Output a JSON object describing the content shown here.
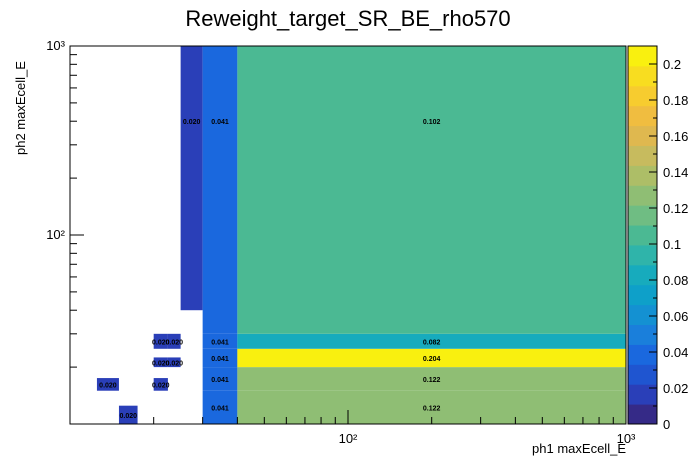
{
  "chart_data": {
    "type": "heatmap",
    "title": "Reweight_target_SR_BE_rho570",
    "xlabel": "ph1 maxEcell_E",
    "ylabel": "ph2 maxEcell_E",
    "x_scale": "log",
    "y_scale": "log",
    "xlim": [
      10,
      1000
    ],
    "ylim": [
      10,
      1000
    ],
    "x_ticks": [
      {
        "value": 100,
        "label": "10²"
      },
      {
        "value": 1000,
        "label": "10³"
      }
    ],
    "y_ticks": [
      {
        "value": 100,
        "label": "10²"
      },
      {
        "value": 1000,
        "label": "10³"
      }
    ],
    "colorbar": {
      "range": [
        0,
        0.21
      ],
      "tick_values": [
        0,
        0.02,
        0.04,
        0.06,
        0.08,
        0.1,
        0.12,
        0.14,
        0.16,
        0.18,
        0.2
      ],
      "tick_labels": [
        "0",
        "0.02",
        "0.04",
        "0.06",
        "0.08",
        "0.1",
        "0.12",
        "0.14",
        "0.16",
        "0.18",
        "0.2"
      ]
    },
    "x_edges": [
      10,
      12.5,
      15,
      17.5,
      20,
      22.5,
      25,
      30,
      40,
      1000
    ],
    "y_edges": [
      10,
      12.5,
      15,
      17.5,
      20,
      22.5,
      25,
      30,
      40,
      1000
    ],
    "cells": [
      {
        "x": [
          15,
          17.5
        ],
        "y": [
          10,
          12.5
        ],
        "value": 0.02,
        "label": "0.020"
      },
      {
        "x": [
          12.5,
          15
        ],
        "y": [
          15,
          17.5
        ],
        "value": 0.02,
        "label": "0.020"
      },
      {
        "x": [
          20,
          22.5
        ],
        "y": [
          15,
          17.5
        ],
        "value": 0.02,
        "label": "0.020"
      },
      {
        "x": [
          20,
          22.5
        ],
        "y": [
          20,
          22.5
        ],
        "value": 0.02,
        "label": "0.020"
      },
      {
        "x": [
          22.5,
          25
        ],
        "y": [
          20,
          22.5
        ],
        "value": 0.02,
        "label": "0.020"
      },
      {
        "x": [
          20,
          22.5
        ],
        "y": [
          25,
          30
        ],
        "value": 0.02,
        "label": "0.020"
      },
      {
        "x": [
          22.5,
          25
        ],
        "y": [
          25,
          30
        ],
        "value": 0.02,
        "label": "0.020"
      },
      {
        "x": [
          25,
          30
        ],
        "y": [
          40,
          1000
        ],
        "value": 0.02,
        "label": "0.020"
      },
      {
        "x": [
          30,
          40
        ],
        "y": [
          10,
          15
        ],
        "value": 0.041,
        "label": "0.041"
      },
      {
        "x": [
          30,
          40
        ],
        "y": [
          15,
          20
        ],
        "value": 0.041,
        "label": "0.041"
      },
      {
        "x": [
          30,
          40
        ],
        "y": [
          20,
          25
        ],
        "value": 0.041,
        "label": "0.041"
      },
      {
        "x": [
          30,
          40
        ],
        "y": [
          25,
          30
        ],
        "value": 0.041,
        "label": "0.041"
      },
      {
        "x": [
          30,
          40
        ],
        "y": [
          30,
          1000
        ],
        "value": 0.041,
        "label": "0.041"
      },
      {
        "x": [
          40,
          1000
        ],
        "y": [
          10,
          15
        ],
        "value": 0.122,
        "label": "0.122"
      },
      {
        "x": [
          40,
          1000
        ],
        "y": [
          15,
          20
        ],
        "value": 0.122,
        "label": "0.122"
      },
      {
        "x": [
          40,
          1000
        ],
        "y": [
          20,
          25
        ],
        "value": 0.204,
        "label": "0.204"
      },
      {
        "x": [
          40,
          1000
        ],
        "y": [
          25,
          30
        ],
        "value": 0.082,
        "label": "0.082"
      },
      {
        "x": [
          40,
          1000
        ],
        "y": [
          30,
          1000
        ],
        "value": 0.102,
        "label": "0.102"
      }
    ],
    "grid": false,
    "legend": "colorbar-right"
  }
}
